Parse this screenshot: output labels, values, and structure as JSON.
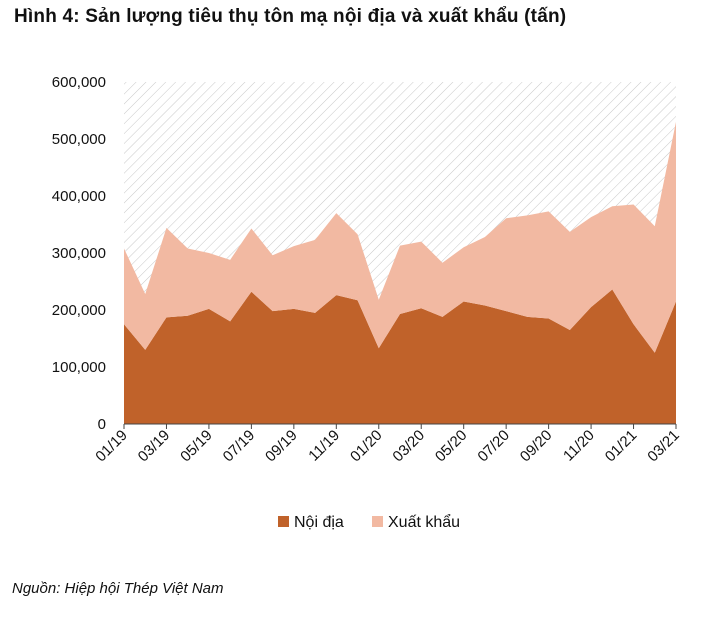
{
  "chart_data": {
    "type": "area",
    "stacked": true,
    "title": "Hình 4: Sản lượng tiêu thụ tôn mạ nội địa và xuất khẩu (tấn)",
    "source": "Nguồn: Hiệp hội Thép Việt Nam",
    "ylim": [
      0,
      600000
    ],
    "yticks": [
      "0",
      "100,000",
      "200,000",
      "300,000",
      "400,000",
      "500,000",
      "600,000"
    ],
    "ytick_values": [
      0,
      100000,
      200000,
      300000,
      400000,
      500000,
      600000
    ],
    "x": [
      "01/19",
      "02/19",
      "03/19",
      "04/19",
      "05/19",
      "06/19",
      "07/19",
      "08/19",
      "09/19",
      "10/19",
      "11/19",
      "12/19",
      "01/20",
      "02/20",
      "03/20",
      "04/20",
      "05/20",
      "06/20",
      "07/20",
      "08/20",
      "09/20",
      "10/20",
      "11/20",
      "12/20",
      "01/21",
      "02/21",
      "03/21"
    ],
    "xtick_labels": [
      "01/19",
      "03/19",
      "05/19",
      "07/19",
      "09/19",
      "11/19",
      "01/20",
      "03/20",
      "05/20",
      "07/20",
      "09/20",
      "11/20",
      "01/21",
      "03/21"
    ],
    "series": [
      {
        "name": "Nội địa",
        "color": "#c0622a",
        "values": [
          175000,
          130000,
          187000,
          190000,
          202000,
          180000,
          232000,
          198000,
          202000,
          195000,
          226000,
          217000,
          133000,
          193000,
          203000,
          188000,
          215000,
          208000,
          198000,
          188000,
          185000,
          165000,
          205000,
          236000,
          175000,
          125000,
          215000
        ]
      },
      {
        "name": "Xuất khẩu",
        "color": "#f2b9a2",
        "values": [
          133000,
          98000,
          157000,
          118000,
          98000,
          108000,
          111000,
          98000,
          110000,
          128000,
          144000,
          116000,
          85000,
          120000,
          117000,
          95000,
          95000,
          120000,
          163000,
          178000,
          188000,
          172000,
          158000,
          146000,
          210000,
          222000,
          315000
        ]
      }
    ],
    "legend": "bottom",
    "background_pattern": "diagonal-hatch"
  }
}
